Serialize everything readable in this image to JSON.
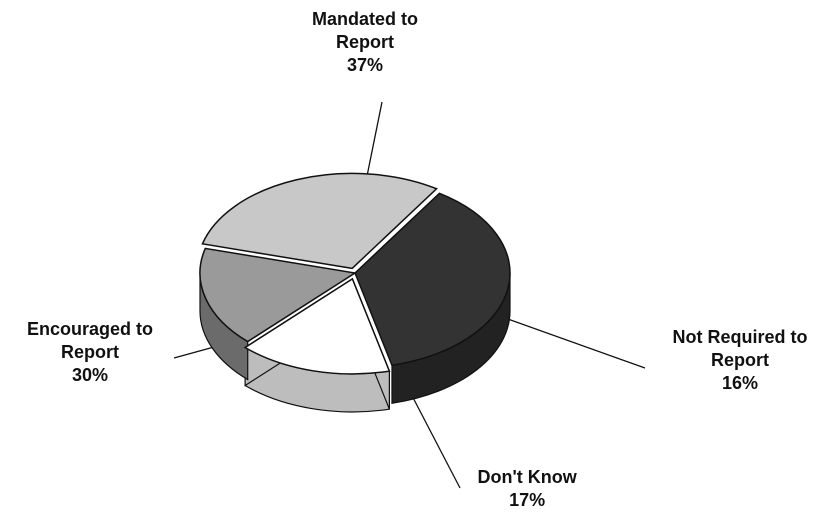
{
  "chart_data": {
    "type": "pie",
    "title": "",
    "style": "3d-exploded",
    "slices": [
      {
        "label": [
          "Mandated to",
          "Report"
        ],
        "value": 37,
        "display": "37%",
        "color": "#333333",
        "side_color": "#222222"
      },
      {
        "label": [
          "Not Required to",
          "Report"
        ],
        "value": 16,
        "display": "16%",
        "color": "#ffffff",
        "side_color": "#bdbdbd"
      },
      {
        "label": [
          "Don't Know"
        ],
        "value": 17,
        "display": "17%",
        "color": "#9a9a9a",
        "side_color": "#6b6b6b"
      },
      {
        "label": [
          "Encouraged to",
          "Report"
        ],
        "value": 30,
        "display": "30%",
        "color": "#c8c8c8",
        "side_color": "#737373"
      }
    ]
  }
}
